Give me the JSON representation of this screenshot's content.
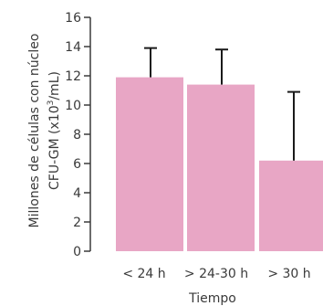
{
  "chart_data": {
    "type": "bar",
    "categories": [
      "< 24 h",
      "> 24-30 h",
      "> 30 h"
    ],
    "values": [
      11.9,
      11.4,
      6.2
    ],
    "error_upper": [
      13.9,
      13.8,
      10.9
    ],
    "ylabel_line1": "Millones de células con núcleo",
    "ylabel_line2_prefix": "CFU-GM (x10",
    "ylabel_line2_sup": "3",
    "ylabel_line2_suffix": "/mL)",
    "xlabel": "Tiempo",
    "ylim": [
      0,
      16
    ],
    "yticks": [
      0,
      2,
      4,
      6,
      8,
      10,
      12,
      14,
      16
    ],
    "grid": false,
    "legend": "none",
    "bar_color": "#e8a6c5",
    "error_color": "#1a1a1a",
    "axis_color": "#3a3a3a"
  }
}
